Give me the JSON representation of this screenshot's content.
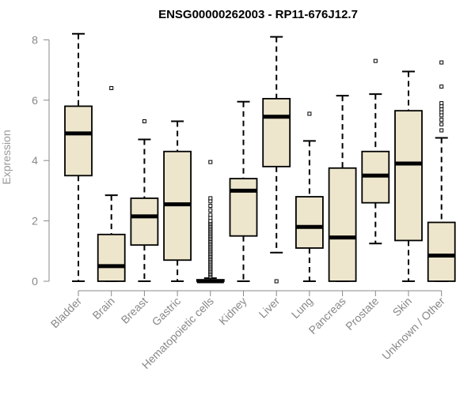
{
  "chart_data": {
    "type": "boxplot",
    "title": "ENSG00000262003 - RP11-676J12.7",
    "xlabel": "",
    "ylabel": "Expression",
    "ylim": [
      0,
      8
    ],
    "y_ticks": [
      0,
      2,
      4,
      6,
      8
    ],
    "grid": false,
    "box_color": "#ede6cc",
    "categories": [
      "Bladder",
      "Brain",
      "Breast",
      "Gastric",
      "Hematopoietic cells",
      "Kidney",
      "Liver",
      "Lung",
      "Pancreas",
      "Prostate",
      "Skin",
      "Unknown / Other"
    ],
    "boxes": [
      {
        "category": "Bladder",
        "min": 0.0,
        "q1": 3.5,
        "median": 4.9,
        "q3": 5.8,
        "max": 8.2,
        "outliers": []
      },
      {
        "category": "Brain",
        "min": 0.0,
        "q1": 0.0,
        "median": 0.5,
        "q3": 1.55,
        "max": 2.85,
        "outliers": [
          6.4
        ]
      },
      {
        "category": "Breast",
        "min": 0.0,
        "q1": 1.2,
        "median": 2.15,
        "q3": 2.75,
        "max": 4.7,
        "outliers": [
          5.3
        ]
      },
      {
        "category": "Gastric",
        "min": 0.0,
        "q1": 0.7,
        "median": 2.55,
        "q3": 4.3,
        "max": 5.3,
        "outliers": []
      },
      {
        "category": "Hematopoietic cells",
        "min": 0.0,
        "q1": 0.0,
        "median": 0.0,
        "q3": 0.05,
        "max": 0.1,
        "outliers": [
          0.15,
          0.2,
          0.25,
          0.3,
          0.35,
          0.4,
          0.45,
          0.5,
          0.55,
          0.6,
          0.65,
          0.7,
          0.75,
          0.8,
          0.85,
          0.9,
          0.95,
          1.0,
          1.05,
          1.1,
          1.15,
          1.2,
          1.25,
          1.3,
          1.35,
          1.4,
          1.45,
          1.5,
          1.55,
          1.6,
          1.65,
          1.7,
          1.75,
          1.8,
          1.85,
          1.9,
          1.95,
          2.0,
          2.1,
          2.2,
          2.35,
          2.5,
          2.65,
          2.75,
          3.95
        ]
      },
      {
        "category": "Kidney",
        "min": 0.0,
        "q1": 1.5,
        "median": 3.0,
        "q3": 3.4,
        "max": 5.95,
        "outliers": []
      },
      {
        "category": "Liver",
        "min": 0.95,
        "q1": 3.8,
        "median": 5.45,
        "q3": 6.05,
        "max": 8.1,
        "outliers": [
          0.0
        ]
      },
      {
        "category": "Lung",
        "min": 0.0,
        "q1": 1.1,
        "median": 1.8,
        "q3": 2.8,
        "max": 4.65,
        "outliers": [
          5.55
        ]
      },
      {
        "category": "Pancreas",
        "min": 0.0,
        "q1": 0.0,
        "median": 1.45,
        "q3": 3.75,
        "max": 6.15,
        "outliers": []
      },
      {
        "category": "Prostate",
        "min": 1.25,
        "q1": 2.6,
        "median": 3.5,
        "q3": 4.3,
        "max": 6.2,
        "outliers": [
          7.3
        ]
      },
      {
        "category": "Skin",
        "min": 0.0,
        "q1": 1.35,
        "median": 3.9,
        "q3": 5.65,
        "max": 6.95,
        "outliers": []
      },
      {
        "category": "Unknown / Other",
        "min": 0.0,
        "q1": 0.0,
        "median": 0.85,
        "q3": 1.95,
        "max": 4.75,
        "outliers": [
          5.0,
          5.2,
          5.35,
          5.5,
          5.6,
          5.7,
          5.8,
          5.9,
          6.45,
          7.25
        ]
      }
    ]
  }
}
